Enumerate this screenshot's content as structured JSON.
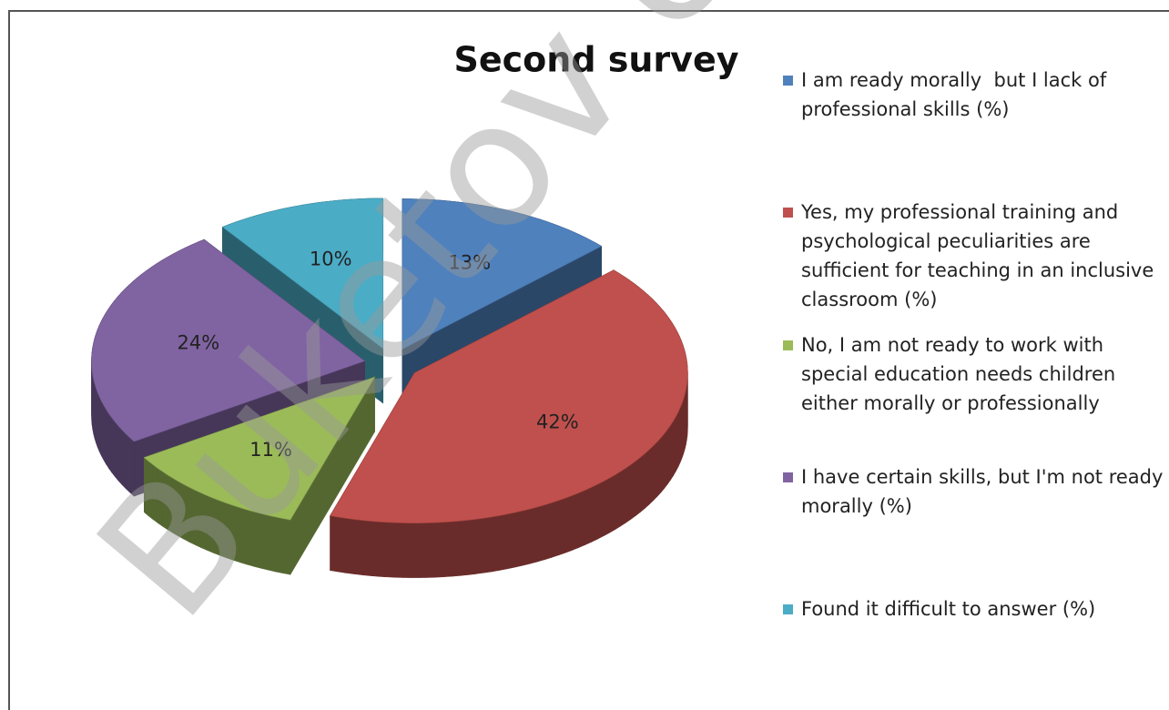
{
  "chart_data": {
    "type": "pie",
    "title": "Second survey",
    "categories": [
      "I am ready morally  but I lack of professional skills (%)",
      "Yes, my professional training and psychological peculiarities are sufficient for teaching in an inclusive classroom (%)",
      "No, I am not ready to work with special education needs children either morally or professionally",
      "I have certain skills, but I'm not ready morally (%)",
      "Found it difficult to answer (%)"
    ],
    "values": [
      13,
      42,
      11,
      24,
      10
    ],
    "value_labels": [
      "13%",
      "42%",
      "11%",
      "24%",
      "10%"
    ],
    "colors": [
      "#4f81bd",
      "#c0504d",
      "#9bbb59",
      "#8064a2",
      "#4bacc6"
    ],
    "legend": "right",
    "watermark": "Buketov Uni"
  }
}
